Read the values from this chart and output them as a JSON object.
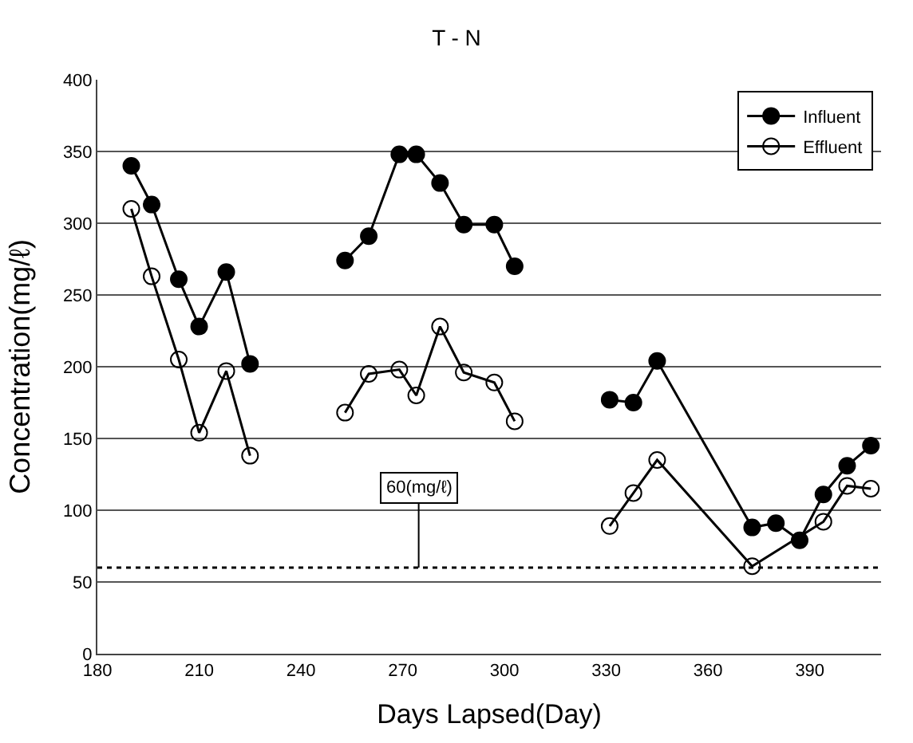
{
  "chart_data": {
    "type": "line",
    "title": "T - N",
    "xlabel": "Days Lapsed(Day)",
    "ylabel": "Concentration(mg/ℓ)",
    "x": [
      190,
      196,
      204,
      210,
      218,
      225,
      239,
      253,
      260,
      269,
      274,
      281,
      288,
      297,
      303,
      317,
      331,
      338,
      345,
      373,
      380,
      387,
      394,
      401,
      408
    ],
    "series": [
      {
        "name": "Influent",
        "color": "#000000",
        "marker": "circle",
        "values": [
          340,
          313,
          261,
          228,
          266,
          202,
          null,
          274,
          291,
          348,
          348,
          328,
          299,
          299,
          270,
          null,
          177,
          175,
          204,
          88,
          91,
          79,
          111,
          131,
          145
        ]
      },
      {
        "name": "Effluent",
        "color": "#000000",
        "marker": "circle-open",
        "x": [
          190,
          196,
          204,
          210,
          218,
          225,
          239,
          253,
          260,
          269,
          274,
          281,
          288,
          297,
          303,
          317,
          331,
          338,
          345,
          373,
          394,
          401,
          408
        ],
        "values": [
          310,
          263,
          205,
          154,
          197,
          138,
          null,
          168,
          195,
          198,
          180,
          228,
          196,
          189,
          162,
          null,
          89,
          112,
          135,
          61,
          92,
          117,
          115
        ]
      }
    ],
    "xlim": [
      180,
      411
    ],
    "xticks": [
      180,
      210,
      240,
      270,
      300,
      330,
      360,
      390
    ],
    "ylim": [
      0,
      400
    ],
    "yticks": [
      0,
      50,
      100,
      150,
      200,
      250,
      300,
      350,
      400
    ],
    "grid": "y",
    "legend": "top right",
    "line_style": "solid",
    "ref_lines": [
      {
        "axis": "y",
        "value": 60,
        "label": "60(mg/ℓ)",
        "color": "#000000",
        "line_style": "dotted"
      }
    ]
  }
}
